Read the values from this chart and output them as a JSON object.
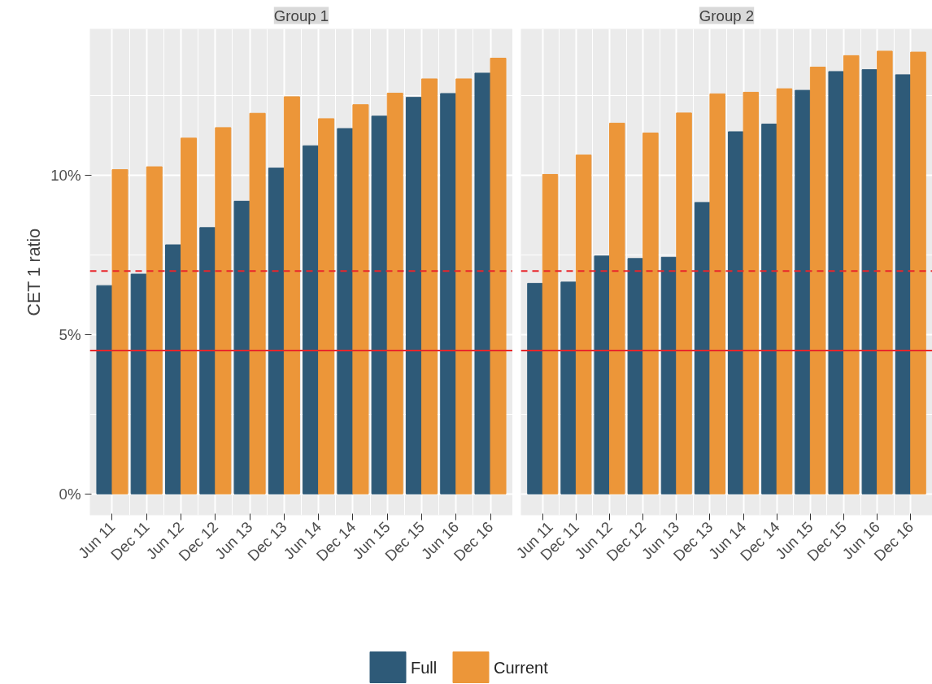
{
  "chart_data": [
    {
      "type": "bar",
      "title": "Group 1",
      "ylabel": "CET 1 ratio",
      "categories": [
        "Jun 11",
        "Dec 11",
        "Jun 12",
        "Dec 12",
        "Jun 13",
        "Dec 13",
        "Jun 14",
        "Dec 14",
        "Jun 15",
        "Dec 15",
        "Jun 16",
        "Dec 16"
      ],
      "series": [
        {
          "name": "Full",
          "color": "#2e5a78",
          "values": [
            6.54,
            6.9,
            7.82,
            8.36,
            9.19,
            10.23,
            10.93,
            11.47,
            11.86,
            12.45,
            12.57,
            13.21
          ]
        },
        {
          "name": "Current",
          "color": "#ec9639",
          "values": [
            10.18,
            10.27,
            11.17,
            11.5,
            11.95,
            12.47,
            11.78,
            12.22,
            12.58,
            13.03,
            13.03,
            13.68
          ]
        }
      ],
      "ylim": [
        -0.67,
        14.6
      ],
      "yticks": [
        {
          "value": 0,
          "label": "0%"
        },
        {
          "value": 5,
          "label": "5%"
        },
        {
          "value": 10,
          "label": "10%"
        }
      ],
      "ref_lines": [
        {
          "axis": "y",
          "value": 7,
          "color": "#e8262b",
          "line_style": "dashed"
        },
        {
          "axis": "y",
          "value": 4.5,
          "color": "#e8262b",
          "line_style": "solid"
        }
      ],
      "grid": true,
      "legend": "bottom"
    },
    {
      "type": "bar",
      "title": "Group 2",
      "categories": [
        "Jun 11",
        "Dec 11",
        "Jun 12",
        "Dec 12",
        "Jun 13",
        "Dec 13",
        "Jun 14",
        "Dec 14",
        "Jun 15",
        "Dec 15",
        "Jun 16",
        "Dec 16"
      ],
      "series": [
        {
          "color": "#2e5a78",
          "values": [
            6.61,
            6.65,
            7.47,
            7.39,
            7.43,
            9.15,
            11.37,
            11.61,
            12.67,
            13.26,
            13.32,
            13.16
          ]
        },
        {
          "color": "#ec9639",
          "values": [
            10.03,
            10.64,
            11.64,
            11.33,
            11.96,
            12.56,
            12.61,
            12.72,
            13.4,
            13.76,
            13.9,
            13.87
          ]
        }
      ],
      "ylim": [
        -0.67,
        14.6
      ],
      "yticks": [
        0,
        5,
        10
      ],
      "ref_lines": [
        {
          "axis": "y",
          "value": 7,
          "color": "#e8262b",
          "line_style": "dashed"
        },
        {
          "axis": "y",
          "value": 4.5,
          "color": "#e8262b",
          "line_style": "solid"
        }
      ],
      "grid": true,
      "tick_labels": "x"
    }
  ]
}
